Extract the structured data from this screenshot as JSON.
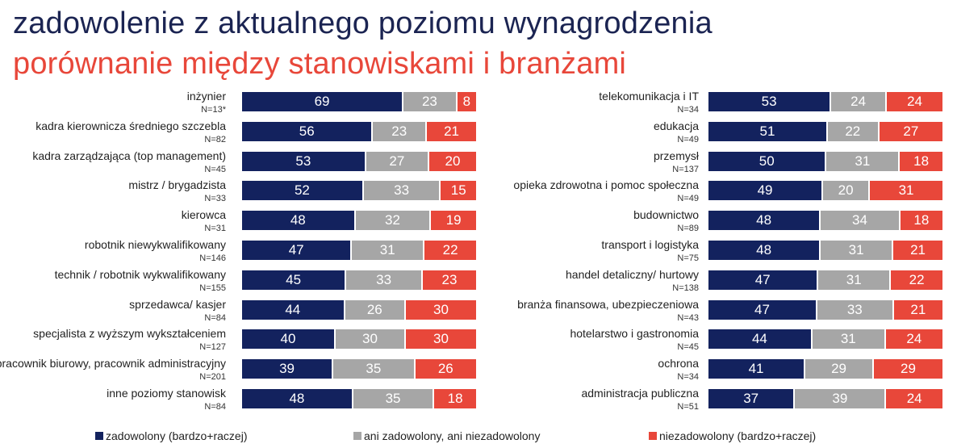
{
  "title": "zadowolenie z aktualnego poziomu wynagrodzenia",
  "subtitle": "porównanie między stanowiskami i branżami",
  "colors": {
    "zadowolony": "#13225e",
    "neutral": "#a6a6a6",
    "niezadowolony": "#e8473a"
  },
  "chart_data": [
    {
      "type": "bar",
      "orientation": "horizontal",
      "stacked": true,
      "categories": [
        "inżynier",
        "kadra kierownicza średniego szczebla",
        "kadra zarządzająca (top management)",
        "mistrz / brygadzista",
        "kierowca",
        "robotnik niewykwalifikowany",
        "technik / robotnik wykwalifikowany",
        "sprzedawca/ kasjer",
        "specjalista z wyższym wykształceniem",
        "pracownik biurowy, pracownik administracyjny",
        "inne poziomy stanowisk"
      ],
      "n_labels": [
        "N=13*",
        "N=82",
        "N=45",
        "N=33",
        "N=31",
        "N=146",
        "N=155",
        "N=84",
        "N=127",
        "N=201",
        "N=84"
      ],
      "series": [
        {
          "name": "zadowolony (bardzo+raczej)",
          "values": [
            69,
            56,
            53,
            52,
            48,
            47,
            45,
            44,
            40,
            39,
            48
          ]
        },
        {
          "name": "ani zadowolony, ani niezadowolony",
          "values": [
            23,
            23,
            27,
            33,
            32,
            31,
            33,
            26,
            30,
            35,
            35
          ]
        },
        {
          "name": "niezadowolony (bardzo+raczej)",
          "values": [
            8,
            21,
            20,
            15,
            19,
            22,
            23,
            30,
            30,
            26,
            18
          ]
        }
      ]
    },
    {
      "type": "bar",
      "orientation": "horizontal",
      "stacked": true,
      "categories": [
        "telekomunikacja i IT",
        "edukacja",
        "przemysł",
        "opieka zdrowotna i pomoc społeczna",
        "budownictwo",
        "transport i logistyka",
        "handel detaliczny/ hurtowy",
        "branża finansowa, ubezpieczeniowa",
        "hotelarstwo i gastronomia",
        "ochrona",
        "administracja publiczna"
      ],
      "n_labels": [
        "N=34",
        "N=49",
        "N=137",
        "N=49",
        "N=89",
        "N=75",
        "N=138",
        "N=43",
        "N=45",
        "N=34",
        "N=51"
      ],
      "series": [
        {
          "name": "zadowolony (bardzo+raczej)",
          "values": [
            53,
            51,
            50,
            49,
            48,
            48,
            47,
            47,
            44,
            41,
            37
          ]
        },
        {
          "name": "ani zadowolony, ani niezadowolony",
          "values": [
            24,
            22,
            31,
            20,
            34,
            31,
            31,
            33,
            31,
            29,
            39
          ]
        },
        {
          "name": "niezadowolony (bardzo+raczej)",
          "values": [
            24,
            27,
            18,
            31,
            18,
            21,
            22,
            21,
            24,
            29,
            24
          ]
        }
      ]
    }
  ],
  "legend": [
    "zadowolony (bardzo+raczej)",
    "ani zadowolony, ani niezadowolony",
    "niezadowolony (bardzo+raczej)"
  ]
}
